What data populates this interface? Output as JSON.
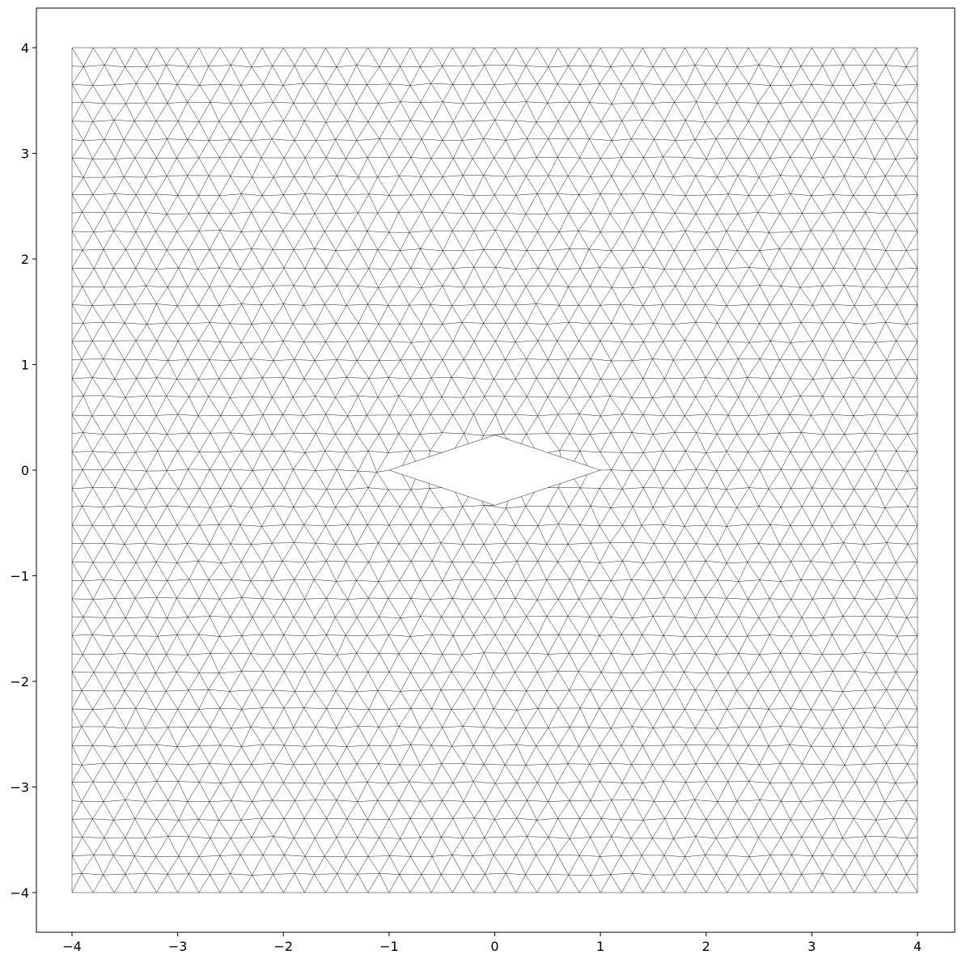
{
  "chart_data": {
    "type": "mesh",
    "description_visible": "triangular mesh on square domain with diamond-shaped hole",
    "xlim": [
      -4.35,
      4.35
    ],
    "ylim": [
      -4.35,
      4.35
    ],
    "domain": {
      "xmin": -4,
      "xmax": 4,
      "ymin": -4,
      "ymax": 4
    },
    "hole_vertices": [
      [
        -1,
        0
      ],
      [
        0,
        0.333
      ],
      [
        1,
        0
      ],
      [
        0,
        -0.333
      ]
    ],
    "grid": false,
    "line_color": "#000000",
    "x_ticks": [
      {
        "value": -4,
        "label": "−4"
      },
      {
        "value": -3,
        "label": "−3"
      },
      {
        "value": -2,
        "label": "−2"
      },
      {
        "value": -1,
        "label": "−1"
      },
      {
        "value": 0,
        "label": "0"
      },
      {
        "value": 1,
        "label": "1"
      },
      {
        "value": 2,
        "label": "2"
      },
      {
        "value": 3,
        "label": "3"
      },
      {
        "value": 4,
        "label": "4"
      }
    ],
    "y_ticks": [
      {
        "value": 4,
        "label": "4"
      },
      {
        "value": 3,
        "label": "3"
      },
      {
        "value": 2,
        "label": "2"
      },
      {
        "value": 1,
        "label": "1"
      },
      {
        "value": 0,
        "label": "0"
      },
      {
        "value": -1,
        "label": "−1"
      },
      {
        "value": -2,
        "label": "−2"
      },
      {
        "value": -3,
        "label": "−3"
      },
      {
        "value": -4,
        "label": "−4"
      }
    ]
  }
}
